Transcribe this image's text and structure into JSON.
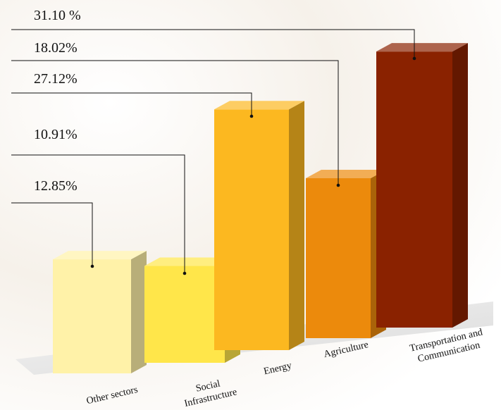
{
  "chart_data": {
    "type": "bar",
    "style": "3d",
    "categories": [
      "Other sectors",
      "Social Infrastructure",
      "Energy",
      "Agriculture",
      "Transportation and Communication"
    ],
    "category_lines": [
      [
        "Other sectors"
      ],
      [
        "Social",
        "Infrastructure"
      ],
      [
        "Energy"
      ],
      [
        "Agriculture"
      ],
      [
        "Transportation and",
        "Communication"
      ]
    ],
    "values": [
      12.85,
      10.91,
      27.12,
      18.02,
      31.1
    ],
    "value_labels": [
      "12.85%",
      "10.91%",
      "27.12%",
      "18.02%",
      "31.10 %"
    ],
    "unit": "%",
    "ylim": [
      0,
      32
    ],
    "grid": false,
    "legend": "none",
    "title": "",
    "xlabel": "",
    "ylabel": "",
    "colors": {
      "bars": [
        "#fff2a8",
        "#ffe64a",
        "#fcb820",
        "#ec8a0c",
        "#8a2200"
      ],
      "floor": "#e4e4e4",
      "background": "#f6f1ea",
      "leader_line": "#111111"
    }
  }
}
